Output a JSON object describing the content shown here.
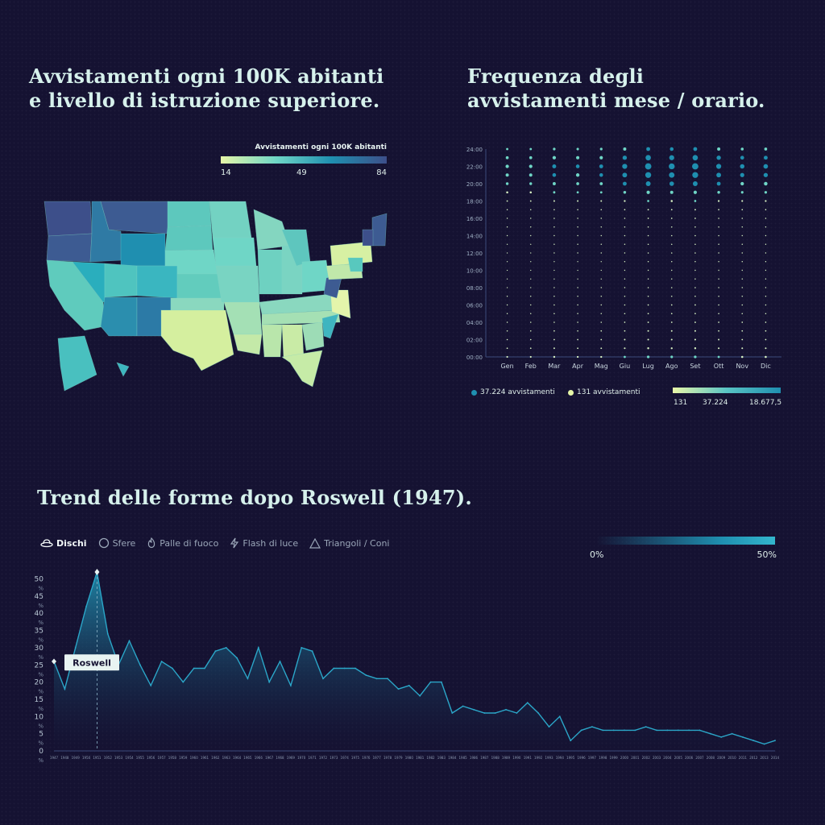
{
  "titles": {
    "map_l1": "Avvistamenti ogni 100K abitanti",
    "map_l2": "e livello di istruzione superiore.",
    "heat_l1": "Frequenza degli",
    "heat_l2": "avvistamenti mese / orario.",
    "trend": "Trend delle forme dopo Roswell (1947)."
  },
  "map_legend": {
    "title": "Avvistamenti ogni 100K abitanti",
    "ticks": [
      "14",
      "49",
      "84"
    ],
    "colors": [
      "#e6f6a8",
      "#6fd6c6",
      "#1f8fb0",
      "#3d4f8a"
    ]
  },
  "heat_legend": {
    "item1": "37.224 avvistamenti",
    "item2": "131 avvistamenti",
    "dot1_color": "#1f8fb0",
    "dot2_color": "#e6f6a8",
    "ticks": [
      "131",
      "37.224",
      "18.677,5"
    ]
  },
  "tabs": [
    {
      "label": "Dischi",
      "icon": "disc-icon",
      "active": true
    },
    {
      "label": "Sfere",
      "icon": "sphere-icon",
      "active": false
    },
    {
      "label": "Palle di fuoco",
      "icon": "fireball-icon",
      "active": false
    },
    {
      "label": "Flash di luce",
      "icon": "lightning-icon",
      "active": false
    },
    {
      "label": "Triangoli / Coni",
      "icon": "triangle-icon",
      "active": false
    }
  ],
  "pct_legend": {
    "min": "0%",
    "max": "50%"
  },
  "chart_data": [
    {
      "type": "heatmap",
      "title": "Frequenza degli avvistamenti mese / orario.",
      "x": [
        "Gen",
        "Feb",
        "Mar",
        "Apr",
        "Mag",
        "Giu",
        "Lug",
        "Ago",
        "Set",
        "Ott",
        "Nov",
        "Dic"
      ],
      "y_ticks": [
        "00:00",
        "02:00",
        "04:00",
        "06:00",
        "08:00",
        "10:00",
        "12:00",
        "14:00",
        "16:00",
        "18:00",
        "20:00",
        "22:00",
        "24:00"
      ],
      "hour_profile": [
        0.32,
        0.18,
        0.14,
        0.12,
        0.1,
        0.08,
        0.08,
        0.06,
        0.05,
        0.04,
        0.04,
        0.04,
        0.05,
        0.05,
        0.06,
        0.06,
        0.08,
        0.1,
        0.22,
        0.45,
        0.72,
        0.92,
        1.0,
        0.82,
        0.55
      ],
      "month_weight": [
        0.42,
        0.42,
        0.52,
        0.48,
        0.5,
        0.7,
        0.92,
        0.85,
        0.92,
        0.7,
        0.6,
        0.62
      ],
      "size_range": [
        131,
        37224
      ]
    },
    {
      "type": "area",
      "title": "Trend delle forme dopo Roswell (1947).",
      "series": [
        {
          "name": "Dischi",
          "x": [
            1947,
            1948,
            1949,
            1950,
            1951,
            1952,
            1953,
            1954,
            1955,
            1956,
            1957,
            1958,
            1959,
            1960,
            1961,
            1962,
            1963,
            1964,
            1965,
            1966,
            1967,
            1968,
            1969,
            1970,
            1971,
            1972,
            1973,
            1974,
            1975,
            1976,
            1977,
            1978,
            1979,
            1980,
            1981,
            1982,
            1983,
            1984,
            1985,
            1986,
            1987,
            1988,
            1989,
            1990,
            1991,
            1992,
            1993,
            1994,
            1995,
            1996,
            1997,
            1998,
            1999,
            2000,
            2001,
            2002,
            2003,
            2004,
            2005,
            2006,
            2007,
            2008,
            2009,
            2010,
            2011,
            2012,
            2013,
            2014
          ],
          "values": [
            26,
            18,
            30,
            42,
            52,
            34,
            25,
            32,
            25,
            19,
            26,
            24,
            20,
            24,
            24,
            29,
            30,
            27,
            21,
            30,
            20,
            26,
            19,
            30,
            29,
            21,
            24,
            24,
            24,
            22,
            21,
            21,
            18,
            19,
            16,
            20,
            20,
            11,
            13,
            12,
            11,
            11,
            12,
            11,
            14,
            11,
            7,
            10,
            3,
            6,
            7,
            6,
            6,
            6,
            6,
            7,
            6,
            6,
            6,
            6,
            6,
            5,
            4,
            5,
            4,
            3,
            2,
            3
          ]
        }
      ],
      "yticks": [
        0,
        5,
        10,
        15,
        20,
        25,
        30,
        35,
        40,
        45,
        50
      ],
      "ytick_suffix": "%",
      "ylim": [
        0,
        52
      ],
      "annotation": {
        "label": "Roswell",
        "year": 1951
      },
      "x_labels": [
        "1947",
        "1948",
        "1949",
        "1950",
        "1951",
        "1952",
        "1953",
        "1954",
        "1955",
        "1956",
        "1957",
        "1958",
        "1959",
        "1960",
        "1961",
        "1962",
        "1963",
        "1964",
        "1965",
        "1966",
        "1967",
        "1968",
        "1969",
        "1970",
        "1971",
        "1972",
        "1973",
        "1974",
        "1975",
        "1976",
        "1977",
        "1978",
        "1979",
        "1980",
        "1981",
        "1982",
        "1983",
        "1984",
        "1985",
        "1986",
        "1987",
        "1988",
        "1989",
        "1990",
        "1991",
        "1992",
        "1993",
        "1994",
        "1995",
        "1996",
        "1997",
        "1998",
        "1999",
        "2000",
        "2001",
        "2002",
        "2003",
        "2004",
        "2005",
        "2006",
        "2007",
        "2008",
        "2009",
        "2010",
        "2011",
        "2012",
        "2013",
        "2014"
      ],
      "colors": {
        "line": "#2ba6c8",
        "fill_top": "#1f8fb0",
        "fill_bottom": "#151232"
      }
    }
  ]
}
